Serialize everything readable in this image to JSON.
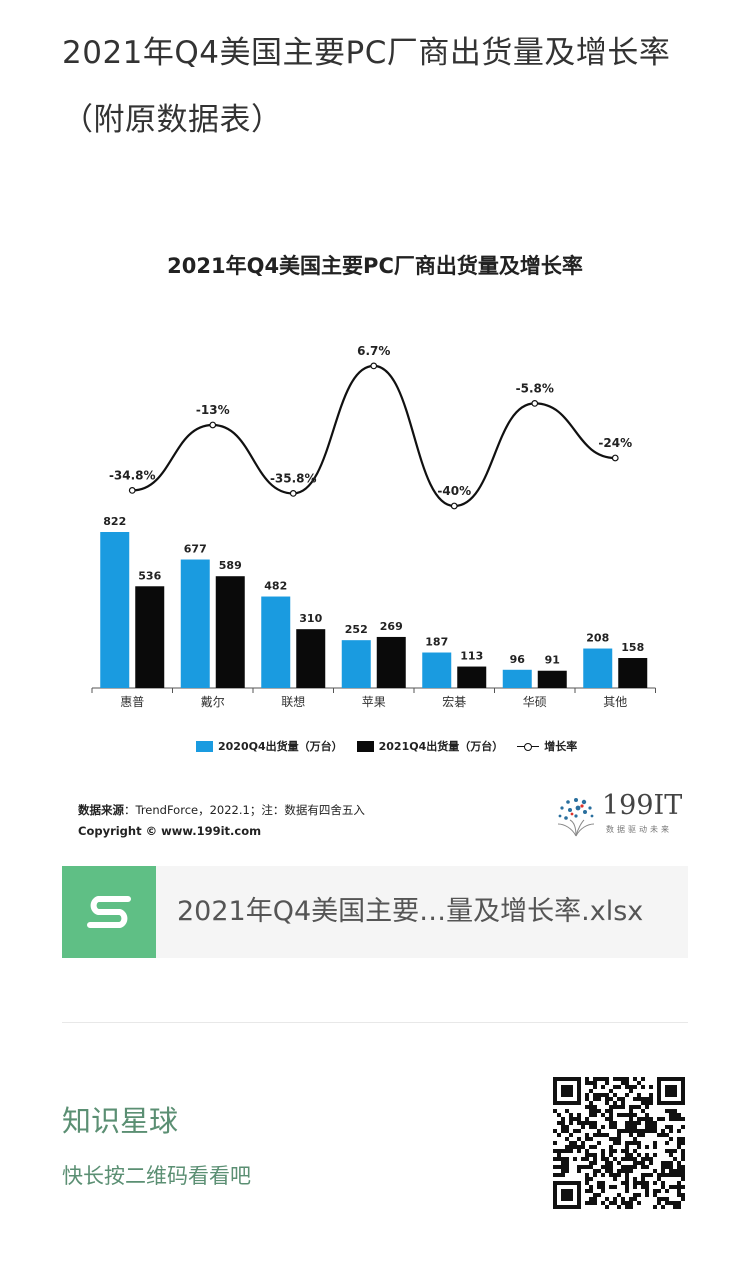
{
  "page": {
    "title": "2021年Q4美国主要PC厂商出货量及增长率（附原数据表）"
  },
  "chart_data": {
    "type": "bar",
    "title": "2021年Q4美国主要PC厂商出货量及增长率",
    "categories": [
      "惠普",
      "戴尔",
      "联想",
      "苹果",
      "宏碁",
      "华硕",
      "其他"
    ],
    "series": [
      {
        "name": "2020Q4出货量（万台）",
        "color": "#1a9be0",
        "values": [
          822,
          677,
          482,
          252,
          187,
          96,
          208
        ]
      },
      {
        "name": "2021Q4出货量（万台）",
        "color": "#0a0a0a",
        "values": [
          536,
          589,
          310,
          269,
          113,
          91,
          158
        ]
      }
    ],
    "line_series": {
      "name": "增长率",
      "values": [
        -34.8,
        -13,
        -35.8,
        6.7,
        -40,
        -5.8,
        -24
      ],
      "labels": [
        "-34.8%",
        "-13%",
        "-35.8%",
        "6.7%",
        "-40%",
        "-5.8%",
        "-24%"
      ]
    },
    "legend_position": "bottom",
    "grid": false
  },
  "source": {
    "label": "数据来源",
    "text": "：TrendForce，2022.1；注：数据有四舍五入",
    "copyright": "Copyright © www.199it.com"
  },
  "brand": {
    "name": "199IT",
    "tagline": "数据驱动未来"
  },
  "file": {
    "icon": "spreadsheet-s-icon",
    "name": "2021年Q4美国主要…量及增长率.xlsx"
  },
  "promo": {
    "title": "知识星球",
    "subtitle": "快长按二维码看看吧"
  }
}
